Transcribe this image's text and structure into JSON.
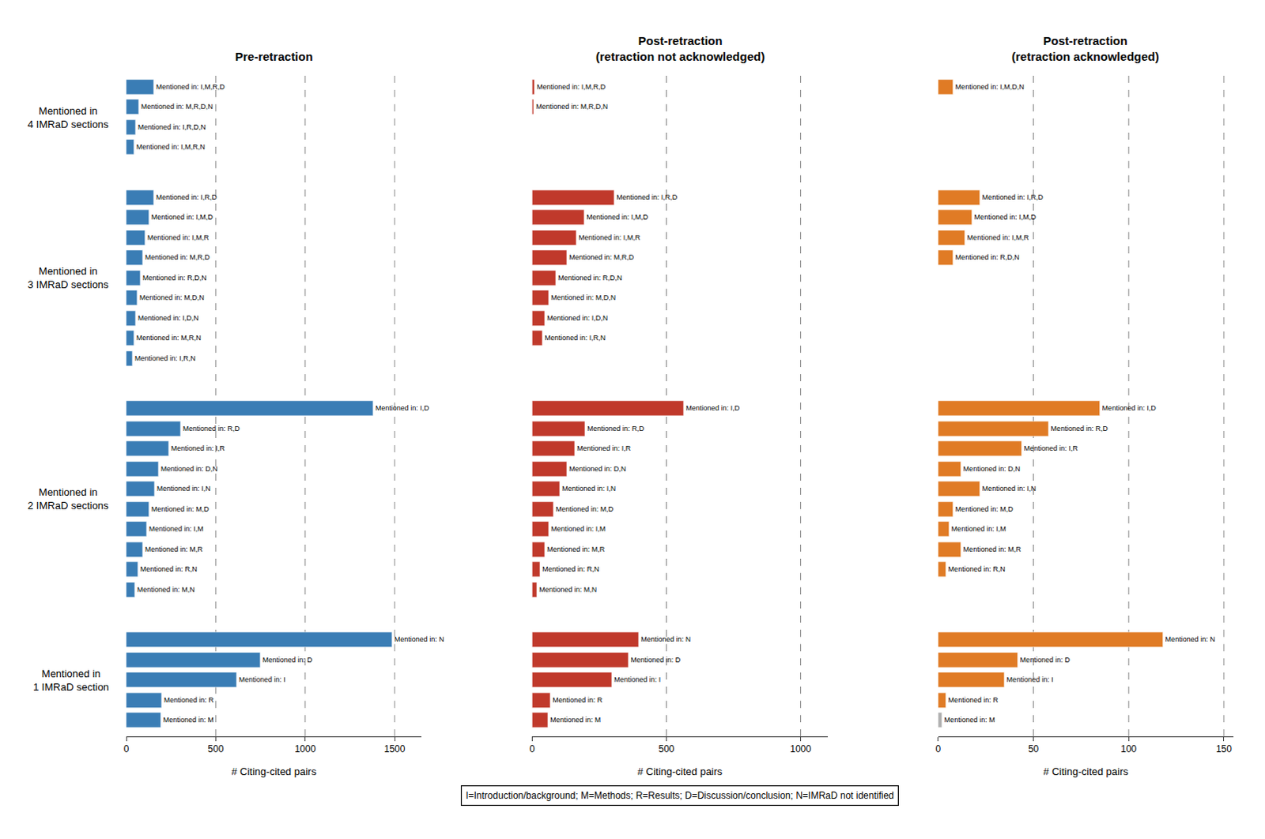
{
  "chart_data": [
    {
      "type": "bar",
      "orientation": "horizontal",
      "title": "Pre-retraction",
      "xlabel": "# Citing-cited pairs",
      "xlim": [
        0,
        1650
      ],
      "xticks": [
        0,
        500,
        1000,
        1500
      ],
      "grid": true,
      "tick_labels": "x",
      "series": [
        {
          "name": "Mentioned in\n4 IMRaD sections",
          "categories": [
            "Mentioned in: I,M,R,D",
            "Mentioned in: M,R,D,N",
            "Mentioned in: I,R,D,N",
            "Mentioned in: I,M,R,N"
          ],
          "values": [
            155,
            72,
            52,
            42
          ],
          "colors": [
            "#3a7db5",
            "#3a7db5",
            "#3a7db5",
            "#3a7db5"
          ]
        },
        {
          "name": "Mentioned in\n3 IMRaD sections",
          "categories": [
            "Mentioned in: I,R,D",
            "Mentioned in: I,M,D",
            "Mentioned in: I,M,R",
            "Mentioned in: M,R,D",
            "Mentioned in: R,D,N",
            "Mentioned in: M,D,N",
            "Mentioned in: I,D,N",
            "Mentioned in: M,R,N",
            "Mentioned in: I,R,N"
          ],
          "values": [
            155,
            128,
            108,
            92,
            78,
            63,
            53,
            43,
            37
          ],
          "colors": [
            "#3a7db5",
            "#3a7db5",
            "#3a7db5",
            "#3a7db5",
            "#3a7db5",
            "#3a7db5",
            "#3a7db5",
            "#3a7db5",
            "#3a7db5"
          ]
        },
        {
          "name": "Mentioned in\n2 IMRaD sections",
          "categories": [
            "Mentioned in: I,D",
            "Mentioned in: R,D",
            "Mentioned in: I,R",
            "Mentioned in: D,N",
            "Mentioned in: I,N",
            "Mentioned in: M,D",
            "Mentioned in: I,M",
            "Mentioned in: M,R",
            "Mentioned in: R,N",
            "Mentioned in: M,N"
          ],
          "values": [
            1380,
            305,
            238,
            182,
            158,
            128,
            113,
            92,
            68,
            48
          ],
          "colors": [
            "#3a7db5",
            "#3a7db5",
            "#3a7db5",
            "#3a7db5",
            "#3a7db5",
            "#3a7db5",
            "#3a7db5",
            "#3a7db5",
            "#3a7db5",
            "#3a7db5"
          ]
        },
        {
          "name": "Mentioned in\n1 IMRaD section",
          "categories": [
            "Mentioned in: N",
            "Mentioned in: D",
            "Mentioned in: I",
            "Mentioned in: R",
            "Mentioned in: M"
          ],
          "values": [
            1485,
            748,
            618,
            198,
            192
          ],
          "colors": [
            "#3a7db5",
            "#3a7db5",
            "#3a7db5",
            "#3a7db5",
            "#3a7db5"
          ]
        }
      ]
    },
    {
      "type": "bar",
      "orientation": "horizontal",
      "title": "Post-retraction\n(retraction not acknowledged)",
      "xlabel": "# Citing-cited pairs",
      "xlim": [
        0,
        1100
      ],
      "xticks": [
        0,
        500,
        1000
      ],
      "grid": true,
      "tick_labels": "x",
      "series": [
        {
          "categories": [
            "Mentioned in: I,M,R,D",
            "Mentioned in: M,R,D,N"
          ],
          "values": [
            10,
            5
          ],
          "colors": [
            "#c0392b",
            "#c0392b"
          ]
        },
        {
          "categories": [
            "Mentioned in: I,R,D",
            "Mentioned in: I,M,D",
            "Mentioned in: I,M,R",
            "Mentioned in: M,R,D",
            "Mentioned in: R,D,N",
            "Mentioned in: M,D,N",
            "Mentioned in: I,D,N",
            "Mentioned in: I,R,N"
          ],
          "values": [
            305,
            195,
            165,
            128,
            88,
            63,
            48,
            37
          ],
          "colors": [
            "#c0392b",
            "#c0392b",
            "#c0392b",
            "#c0392b",
            "#c0392b",
            "#c0392b",
            "#c0392b",
            "#c0392b"
          ]
        },
        {
          "categories": [
            "Mentioned in: I,D",
            "Mentioned in: R,D",
            "Mentioned in: I,R",
            "Mentioned in: D,N",
            "Mentioned in: I,N",
            "Mentioned in: M,D",
            "Mentioned in: I,M",
            "Mentioned in: M,R",
            "Mentioned in: R,N",
            "Mentioned in: M,N"
          ],
          "values": [
            565,
            198,
            158,
            128,
            103,
            78,
            63,
            48,
            29,
            17
          ],
          "colors": [
            "#c0392b",
            "#c0392b",
            "#c0392b",
            "#c0392b",
            "#c0392b",
            "#c0392b",
            "#c0392b",
            "#c0392b",
            "#c0392b",
            "#c0392b"
          ]
        },
        {
          "categories": [
            "Mentioned in: N",
            "Mentioned in: D",
            "Mentioned in: I",
            "Mentioned in: R",
            "Mentioned in: M"
          ],
          "values": [
            398,
            358,
            298,
            68,
            58
          ],
          "colors": [
            "#c0392b",
            "#c0392b",
            "#c0392b",
            "#c0392b",
            "#c0392b"
          ]
        }
      ]
    },
    {
      "type": "bar",
      "orientation": "horizontal",
      "title": "Post-retraction\n(retraction acknowledged)",
      "xlabel": "# Citing-cited pairs",
      "xlim": [
        0,
        155
      ],
      "xticks": [
        0,
        50,
        100,
        150
      ],
      "grid": true,
      "tick_labels": "x",
      "series": [
        {
          "categories": [
            "Mentioned in: I,M,D,N"
          ],
          "values": [
            8
          ],
          "colors": [
            "#e07b25"
          ]
        },
        {
          "categories": [
            "Mentioned in: I,R,D",
            "Mentioned in: I,M,D",
            "Mentioned in: I,M,R",
            "Mentioned in: R,D,N"
          ],
          "values": [
            22,
            18,
            14,
            8
          ],
          "colors": [
            "#e07b25",
            "#e07b25",
            "#e07b25",
            "#e07b25"
          ]
        },
        {
          "categories": [
            "Mentioned in: I,D",
            "Mentioned in: R,D",
            "Mentioned in: I,R",
            "Mentioned in: D,N",
            "Mentioned in: I,N",
            "Mentioned in: M,D",
            "Mentioned in: I,M",
            "Mentioned in: M,R",
            "Mentioned in: R,N"
          ],
          "values": [
            85,
            58,
            44,
            12,
            22,
            8,
            6,
            12,
            4
          ],
          "colors": [
            "#e07b25",
            "#e07b25",
            "#e07b25",
            "#e07b25",
            "#e07b25",
            "#e07b25",
            "#e07b25",
            "#e07b25",
            "#e07b25"
          ]
        },
        {
          "categories": [
            "Mentioned in: N",
            "Mentioned in: D",
            "Mentioned in: I",
            "Mentioned in: R",
            "Mentioned in: M"
          ],
          "values": [
            118,
            42,
            35,
            4,
            2
          ],
          "colors": [
            "#e07b25",
            "#e07b25",
            "#e07b25",
            "#e07b25",
            "#b0b0b0"
          ]
        }
      ]
    }
  ],
  "footnote": "I=Introduction/background; M=Methods; R=Results; D=Discussion/conclusion; N=IMRaD not identified"
}
